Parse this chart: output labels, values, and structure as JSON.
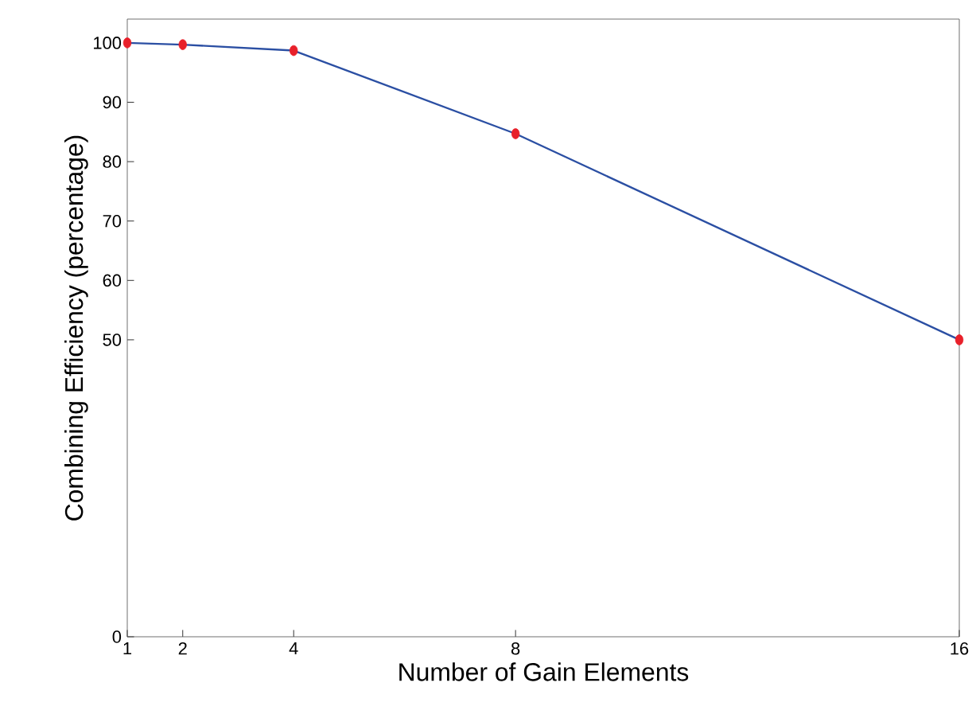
{
  "chart_data": {
    "type": "line",
    "xlabel": "Number of Gain Elements",
    "ylabel": "Combining Efficiency (percentage)",
    "x": [
      1,
      2,
      4,
      8,
      16
    ],
    "series": [
      {
        "color": "#2b4fa3",
        "colors": [
          "#e8202a",
          "#e8202a",
          "#e8202a",
          "#e8202a",
          "#e8202a"
        ],
        "values": [
          100,
          99.7,
          98.7,
          84.7,
          50
        ]
      }
    ],
    "marker": "circle",
    "xlim": [
      1,
      16
    ],
    "xticks": [
      1,
      2,
      4,
      8,
      16
    ],
    "ylim": [
      0,
      104
    ],
    "yticks": [
      0,
      50,
      60,
      70,
      80,
      90,
      100
    ]
  }
}
